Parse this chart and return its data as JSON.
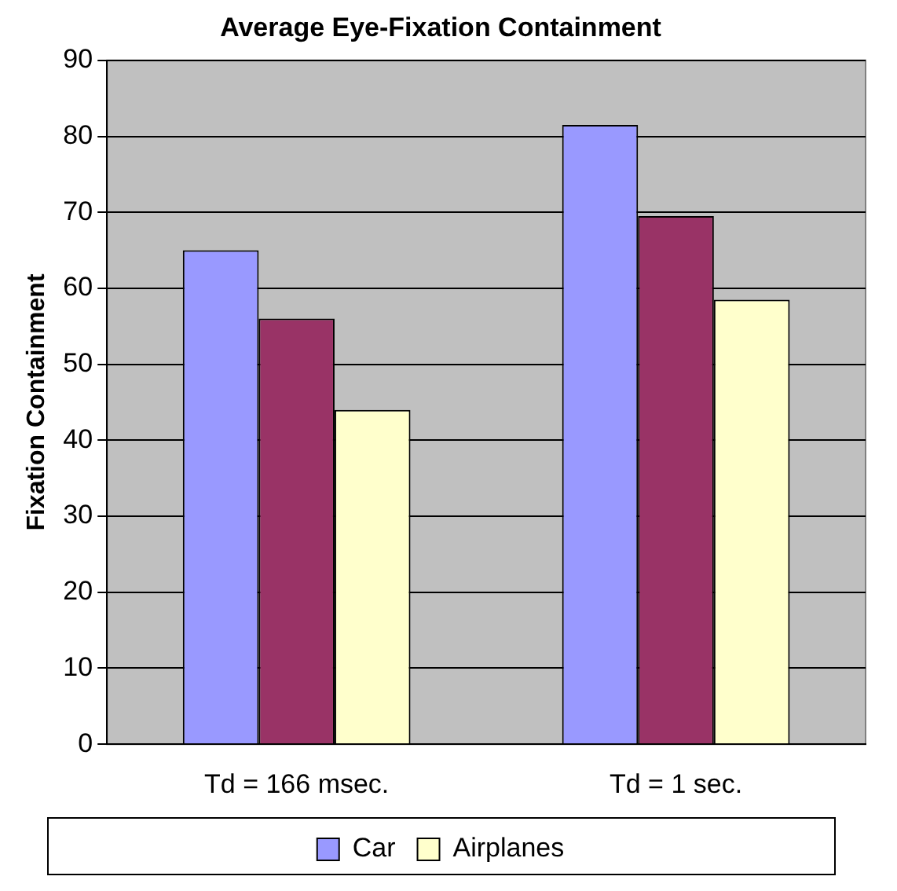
{
  "chart_data": {
    "type": "bar",
    "title": "Average Eye-Fixation Containment",
    "ylabel": "Fixation Containment",
    "categories": [
      "Td = 166 msec.",
      "Td = 1 sec."
    ],
    "series": [
      {
        "name": "Car",
        "color": "#9999ff",
        "values": [
          65,
          81.5
        ]
      },
      {
        "color": "#993366",
        "values": [
          56,
          69.5
        ]
      },
      {
        "name": "Airplanes",
        "color": "#ffffcc",
        "values": [
          44,
          58.5
        ]
      }
    ],
    "ylim": [
      0,
      90
    ],
    "yticks": [
      0,
      10,
      20,
      30,
      40,
      50,
      60,
      70,
      80,
      90
    ],
    "grid": "y",
    "legend": "bottom"
  }
}
